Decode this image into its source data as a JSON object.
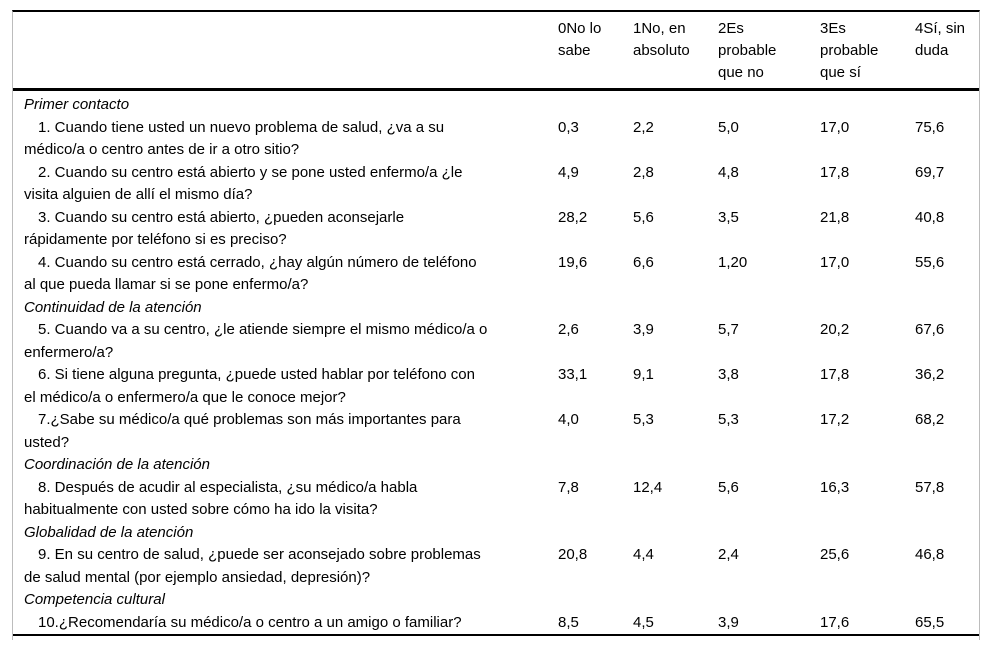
{
  "colors": {
    "background": "#ffffff",
    "text": "#000000",
    "rule": "#000000",
    "side_border": "#bcbcbc"
  },
  "table": {
    "header": {
      "columns": [
        "0No lo\nsabe",
        "1No, en\nabsoluto",
        "2Es\nprobable\nque no",
        "3Es\nprobable\nque sí",
        "4Sí, sin\nduda"
      ]
    },
    "rows": [
      {
        "type": "section",
        "label": "Primer contacto"
      },
      {
        "type": "question",
        "label": "1. Cuando tiene usted un nuevo problema de salud, ¿va a su\nmédico/a o centro antes de ir a otro sitio?",
        "values": [
          "0,3",
          "2,2",
          "5,0",
          "17,0",
          "75,6"
        ]
      },
      {
        "type": "question",
        "label": "2. Cuando su centro está abierto y se pone usted enfermo/a ¿le\nvisita alguien de allí el mismo día?",
        "values": [
          "4,9",
          "2,8",
          "4,8",
          "17,8",
          "69,7"
        ]
      },
      {
        "type": "question",
        "label": "3. Cuando su centro está abierto, ¿pueden aconsejarle\nrápidamente por teléfono si es preciso?",
        "values": [
          "28,2",
          "5,6",
          "3,5",
          "21,8",
          "40,8"
        ]
      },
      {
        "type": "question",
        "label": "4. Cuando su centro está cerrado, ¿hay algún número de teléfono\nal que pueda llamar si se pone enfermo/a?",
        "values": [
          "19,6",
          "6,6",
          "1,20",
          "17,0",
          "55,6"
        ]
      },
      {
        "type": "section",
        "label": "Continuidad de la atención"
      },
      {
        "type": "question",
        "label": "5. Cuando va a su centro, ¿le atiende siempre el mismo médico/a o\nenfermero/a?",
        "values": [
          "2,6",
          "3,9",
          "5,7",
          "20,2",
          "67,6"
        ]
      },
      {
        "type": "question",
        "label": "6. Si tiene alguna pregunta, ¿puede usted hablar por teléfono con\nel médico/a o enfermero/a que le conoce mejor?",
        "values": [
          "33,1",
          "9,1",
          "3,8",
          "17,8",
          "36,2"
        ]
      },
      {
        "type": "question",
        "label": "7.¿Sabe su médico/a qué problemas son más importantes para\nusted?",
        "values": [
          "4,0",
          "5,3",
          "5,3",
          "17,2",
          "68,2"
        ]
      },
      {
        "type": "section",
        "label": "Coordinación de la atención"
      },
      {
        "type": "question",
        "label": "8. Después de acudir al especialista, ¿su médico/a habla\nhabitualmente con usted sobre cómo ha ido la visita?",
        "values": [
          "7,8",
          "12,4",
          "5,6",
          "16,3",
          "57,8"
        ]
      },
      {
        "type": "section",
        "label": "Globalidad de la atención"
      },
      {
        "type": "question",
        "label": "9. En su centro de salud, ¿puede ser aconsejado sobre problemas\nde salud mental (por ejemplo ansiedad, depresión)?",
        "values": [
          "20,8",
          "4,4",
          "2,4",
          "25,6",
          "46,8"
        ]
      },
      {
        "type": "section",
        "label": "Competencia cultural"
      },
      {
        "type": "question",
        "label": "10.¿Recomendaría su médico/a o centro a un amigo o familiar?",
        "values": [
          "8,5",
          "4,5",
          "3,9",
          "17,6",
          "65,5"
        ]
      }
    ]
  }
}
